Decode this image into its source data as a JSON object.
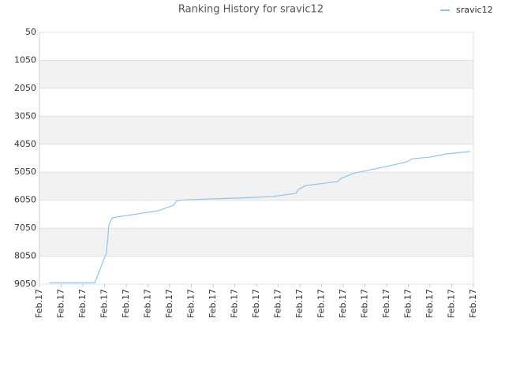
{
  "chart_data": {
    "type": "line",
    "title": "Ranking History for sravic12",
    "x": [
      0.47,
      2.55,
      3.09,
      3.2,
      3.35,
      3.56,
      5.45,
      6.18,
      6.33,
      6.91,
      8.0,
      9.09,
      10.73,
      11.82,
      11.93,
      12.29,
      13.75,
      13.89,
      14.55,
      15.27,
      16.0,
      16.91,
      17.2,
      18.0,
      18.73,
      19.85
    ],
    "series": [
      {
        "name": "sravic12",
        "color": "#90c4ee",
        "values": [
          9000,
          9000,
          7920,
          6930,
          6680,
          6650,
          6430,
          6230,
          6060,
          6030,
          6000,
          5975,
          5920,
          5805,
          5665,
          5525,
          5380,
          5270,
          5070,
          4960,
          4845,
          4680,
          4565,
          4510,
          4395,
          4310
        ]
      }
    ],
    "xlim": [
      0,
      20
    ],
    "xticks": [
      {
        "value": 0,
        "label": "Feb.17"
      },
      {
        "value": 1,
        "label": "Feb.17"
      },
      {
        "value": 2,
        "label": "Feb.17"
      },
      {
        "value": 3,
        "label": "Feb.17"
      },
      {
        "value": 4,
        "label": "Feb.17"
      },
      {
        "value": 5,
        "label": "Feb.17"
      },
      {
        "value": 6,
        "label": "Feb.17"
      },
      {
        "value": 7,
        "label": "Feb.17"
      },
      {
        "value": 8,
        "label": "Feb.17"
      },
      {
        "value": 9,
        "label": "Feb.17"
      },
      {
        "value": 10,
        "label": "Feb.17"
      },
      {
        "value": 11,
        "label": "Feb.17"
      },
      {
        "value": 12,
        "label": "Feb.17"
      },
      {
        "value": 13,
        "label": "Feb.17"
      },
      {
        "value": 14,
        "label": "Feb.17"
      },
      {
        "value": 15,
        "label": "Feb.17"
      },
      {
        "value": 16,
        "label": "Feb.17"
      },
      {
        "value": 17,
        "label": "Feb.17"
      },
      {
        "value": 18,
        "label": "Feb.17"
      },
      {
        "value": 19,
        "label": "Feb.17"
      },
      {
        "value": 20,
        "label": "Feb.17"
      }
    ],
    "ylim": [
      50,
      9050
    ],
    "y_inverted": true,
    "yticks": [
      50,
      1050,
      2050,
      3050,
      4050,
      5050,
      6050,
      7050,
      8050,
      9050
    ],
    "grid": true,
    "legend": "top-right"
  }
}
